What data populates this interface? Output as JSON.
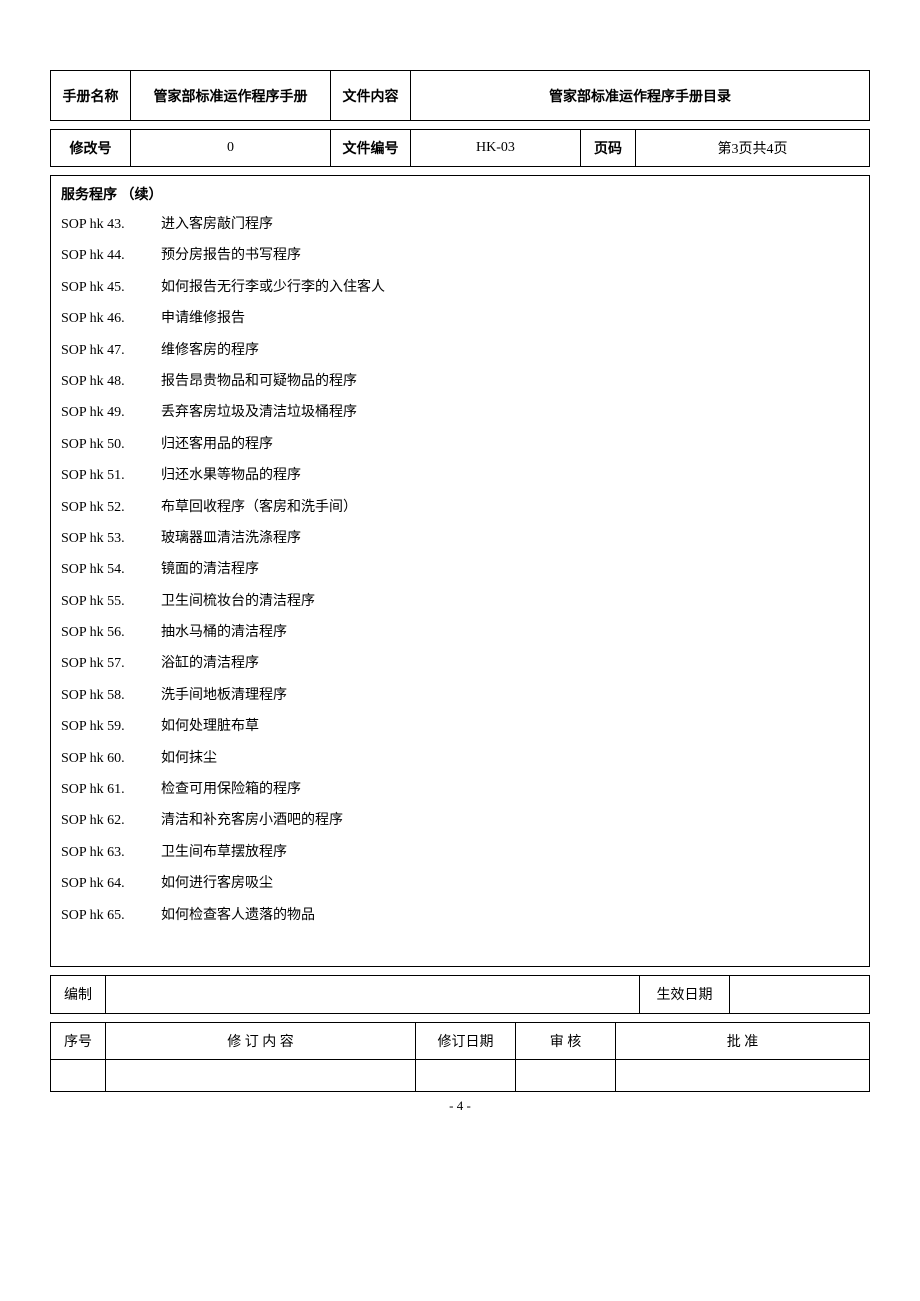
{
  "header": {
    "manual_name_label": "手册名称",
    "manual_name_value": "管家部标准运作程序手册",
    "doc_content_label": "文件内容",
    "doc_content_value": "管家部标准运作程序手册目录"
  },
  "subheader": {
    "rev_label": "修改号",
    "rev_value": "0",
    "doc_no_label": "文件编号",
    "doc_no_value": "HK-03",
    "page_label": "页码",
    "page_value": "第3页共4页"
  },
  "content": {
    "section_title": "服务程序  （续）",
    "items": [
      {
        "code": "SOP hk 43.",
        "desc": "进入客房敲门程序"
      },
      {
        "code": "SOP hk 44.",
        "desc": "预分房报告的书写程序"
      },
      {
        "code": "SOP hk 45.",
        "desc": "如何报告无行李或少行李的入住客人"
      },
      {
        "code": "SOP hk 46.",
        "desc": "申请维修报告"
      },
      {
        "code": "SOP hk 47.",
        "desc": "维修客房的程序"
      },
      {
        "code": "SOP hk 48.",
        "desc": "报告昂贵物品和可疑物品的程序"
      },
      {
        "code": "SOP hk 49.",
        "desc": "丢弃客房垃圾及清洁垃圾桶程序"
      },
      {
        "code": "SOP hk 50.",
        "desc": "归还客用品的程序"
      },
      {
        "code": "SOP hk 51.",
        "desc": "归还水果等物品的程序"
      },
      {
        "code": "SOP hk 52.",
        "desc": "布草回收程序（客房和洗手间）"
      },
      {
        "code": "SOP hk 53.",
        "desc": "玻璃器皿清洁洗涤程序"
      },
      {
        "code": "SOP hk 54.",
        "desc": "镜面的清洁程序"
      },
      {
        "code": "SOP hk 55.",
        "desc": "卫生间梳妆台的清洁程序"
      },
      {
        "code": "SOP hk 56.",
        "desc": "抽水马桶的清洁程序"
      },
      {
        "code": "SOP hk 57.",
        "desc": "浴缸的清洁程序"
      },
      {
        "code": "SOP hk 58.",
        "desc": "洗手间地板清理程序"
      },
      {
        "code": "SOP hk 59.",
        "desc": "如何处理脏布草"
      },
      {
        "code": "SOP hk 60.",
        "desc": "如何抹尘"
      },
      {
        "code": "SOP hk 61.",
        "desc": "检查可用保险箱的程序"
      },
      {
        "code": "SOP hk 62.",
        "desc": "清洁和补充客房小酒吧的程序"
      },
      {
        "code": "SOP hk 63.",
        "desc": "卫生间布草摆放程序"
      },
      {
        "code": "SOP hk 64.",
        "desc": "如何进行客房吸尘"
      },
      {
        "code": "SOP hk 65.",
        "desc": "如何检查客人遗落的物品"
      }
    ]
  },
  "footer1": {
    "compiled_label": "编制",
    "effective_date_label": "生效日期"
  },
  "footer2": {
    "seq_label": "序号",
    "content_label": "修 订 内 容",
    "date_label": "修订日期",
    "review_label": "审    核",
    "approve_label": "批    准"
  },
  "page_number": "- 4 -"
}
